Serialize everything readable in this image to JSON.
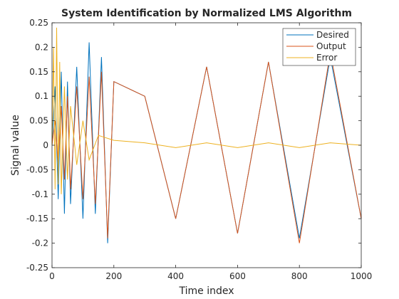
{
  "chart_data": {
    "type": "line",
    "title": "System Identification by Normalized LMS Algorithm",
    "xlabel": "Time index",
    "ylabel": "Signal value",
    "xlim": [
      0,
      1000
    ],
    "ylim": [
      -0.25,
      0.25
    ],
    "xticks": [
      0,
      200,
      400,
      600,
      800,
      1000
    ],
    "xtick_labels": [
      "0",
      "200",
      "400",
      "600",
      "800",
      "1000"
    ],
    "yticks": [
      -0.25,
      -0.2,
      -0.15,
      -0.1,
      -0.05,
      0,
      0.05,
      0.1,
      0.15,
      0.2,
      0.25
    ],
    "ytick_labels": [
      "-0.25",
      "-0.2",
      "-0.15",
      "-0.1",
      "-0.05",
      "0",
      "0.05",
      "0.1",
      "0.15",
      "0.2",
      "0.25"
    ],
    "grid": false,
    "legend_position": "top-right",
    "series": [
      {
        "name": "Desired",
        "color": "#0072BD",
        "x": [
          0,
          10,
          20,
          30,
          40,
          50,
          60,
          80,
          100,
          120,
          140,
          160,
          180,
          200,
          300,
          400,
          500,
          600,
          700,
          800,
          900,
          1000
        ],
        "values": [
          0.0,
          0.12,
          -0.11,
          0.15,
          -0.14,
          0.13,
          -0.12,
          0.16,
          -0.15,
          0.21,
          -0.14,
          0.18,
          -0.2,
          0.13,
          0.1,
          -0.15,
          0.16,
          -0.18,
          0.17,
          -0.19,
          0.18,
          -0.15
        ]
      },
      {
        "name": "Output",
        "color": "#D95319",
        "x": [
          0,
          10,
          20,
          30,
          40,
          50,
          60,
          80,
          100,
          120,
          140,
          160,
          180,
          200,
          300,
          400,
          500,
          600,
          700,
          800,
          900,
          1000
        ],
        "values": [
          0.0,
          0.05,
          -0.04,
          0.08,
          -0.07,
          0.1,
          -0.09,
          0.12,
          -0.11,
          0.14,
          -0.12,
          0.15,
          -0.19,
          0.13,
          0.1,
          -0.15,
          0.16,
          -0.18,
          0.17,
          -0.2,
          0.19,
          -0.15
        ]
      },
      {
        "name": "Error",
        "color": "#EDB120",
        "x": [
          0,
          5,
          10,
          15,
          20,
          25,
          30,
          40,
          50,
          60,
          80,
          100,
          120,
          150,
          200,
          300,
          400,
          500,
          600,
          700,
          800,
          900,
          1000
        ],
        "values": [
          0.0,
          0.2,
          -0.09,
          0.24,
          -0.08,
          0.17,
          -0.1,
          0.12,
          -0.07,
          0.08,
          -0.04,
          0.05,
          -0.03,
          0.02,
          0.01,
          0.005,
          -0.005,
          0.005,
          -0.005,
          0.005,
          -0.005,
          0.005,
          0.0
        ]
      }
    ]
  }
}
